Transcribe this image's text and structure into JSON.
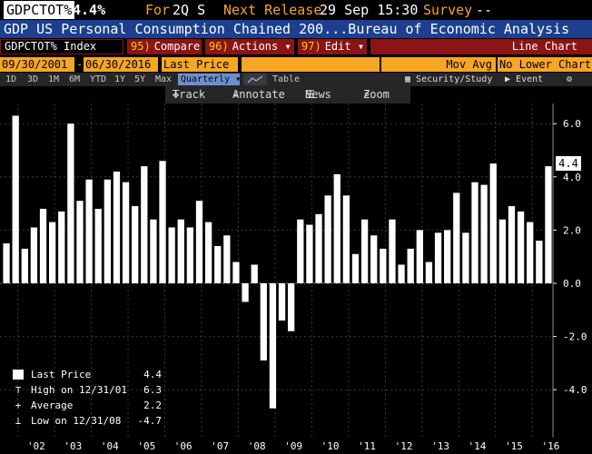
{
  "header": {
    "ticker": "GDPCTOT%",
    "price": "4.4%",
    "for_label": "For",
    "for_value": "2Q S",
    "next_release_label": "Next Release",
    "next_release_value": "29 Sep 15:30",
    "survey_label": "Survey",
    "survey_value": "--"
  },
  "title_bar": "GDP US Personal Consumption Chained 200...Bureau of Economic Analysis",
  "menu": {
    "index_label": "GDPCTOT% Index",
    "compare_num": "95)",
    "compare_label": "Compare",
    "actions_num": "96)",
    "actions_label": "Actions",
    "edit_num": "97)",
    "edit_label": "Edit",
    "chart_type": "Line Chart"
  },
  "controls": {
    "start_date": "09/30/2001",
    "end_date": "06/30/2016",
    "field": "Last Price",
    "moving_avg": "Mov Avg",
    "lower_chart": "No Lower Chart"
  },
  "periods": [
    "1D",
    "3D",
    "1M",
    "6M",
    "YTD",
    "1Y",
    "5Y",
    "Max"
  ],
  "frequency": "Quarterly",
  "table_label": "Table",
  "security_label": "Security/Study",
  "event_label": "Event",
  "toolbar": {
    "track": "Track",
    "annotate": "Annotate",
    "news": "News",
    "zoom": "Zoom"
  },
  "legend": {
    "last_price_label": "Last Price",
    "last_price_value": "4.4",
    "high_label": "High on 12/31/01",
    "high_value": "6.3",
    "average_label": "Average",
    "average_value": "2.2",
    "low_label": "Low on 12/31/08",
    "low_value": "-4.7"
  },
  "last_value_label": "4.4",
  "chart_data": {
    "type": "bar",
    "x_start": "2001-09-30",
    "x_end": "2016-06-30",
    "frequency": "quarterly",
    "ylim": [
      -6.0,
      6.3
    ],
    "yticks": [
      -4.0,
      -2.0,
      0.0,
      2.0,
      4.0,
      6.0
    ],
    "ytick_labels": [
      "-4.0",
      "-2.0",
      "0.0",
      "2.0",
      "4.0",
      "6.0"
    ],
    "year_labels": [
      "'02",
      "'03",
      "'04",
      "'05",
      "'06",
      "'07",
      "'08",
      "'09",
      "'10",
      "'11",
      "'12",
      "'13",
      "'14",
      "'15",
      "'16"
    ],
    "grid": true,
    "series": [
      {
        "values": [
          1.5,
          6.3,
          1.3,
          2.1,
          2.8,
          2.3,
          2.7,
          6.0,
          3.1,
          3.9,
          2.8,
          3.9,
          4.2,
          3.8,
          2.9,
          4.4,
          2.4,
          4.6,
          2.1,
          2.4,
          2.1,
          3.1,
          2.3,
          1.4,
          1.8,
          0.8,
          -0.7,
          0.7,
          -2.9,
          -4.7,
          -1.4,
          -1.8,
          2.4,
          2.2,
          2.6,
          3.3,
          4.1,
          3.3,
          1.1,
          2.4,
          1.8,
          1.3,
          2.4,
          0.7,
          1.3,
          2.0,
          0.8,
          1.9,
          2.0,
          3.4,
          1.9,
          3.8,
          3.7,
          4.5,
          2.4,
          2.9,
          2.7,
          2.3,
          1.6,
          4.4
        ],
        "color": "#ffffff"
      }
    ],
    "last_value": 4.4,
    "high": {
      "date": "12/31/01",
      "value": 6.3
    },
    "low": {
      "date": "12/31/08",
      "value": -4.7
    },
    "average": 2.2,
    "legend_position": "bottom-left"
  }
}
